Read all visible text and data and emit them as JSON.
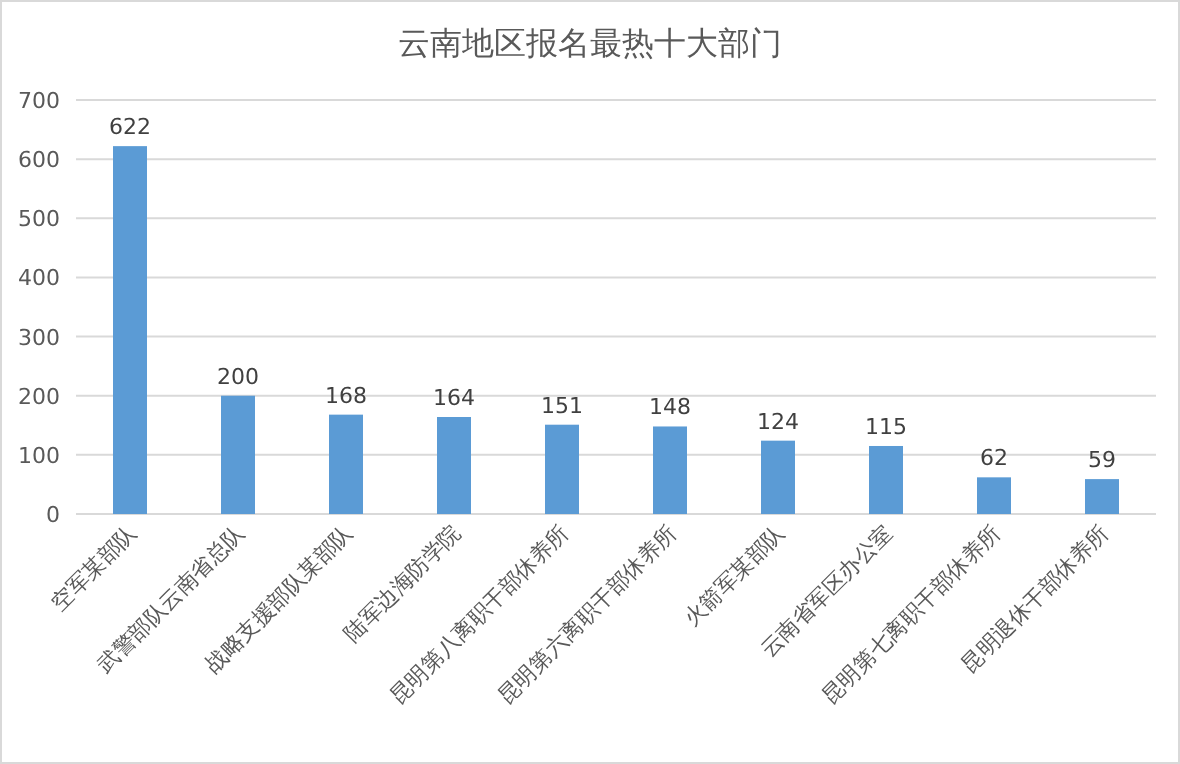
{
  "chart_data": {
    "type": "bar",
    "title": "云南地区报名最热十大部门",
    "categories": [
      "空军某部队",
      "武警部队云南省总队",
      "战略支援部队某部队",
      "陆军边海防学院",
      "昆明第八离职干部休养所",
      "昆明第六离职干部休养所",
      "火箭军某部队",
      "云南省军区办公室",
      "昆明第七离职干部休养所",
      "昆明退休干部休养所"
    ],
    "values": [
      622,
      200,
      168,
      164,
      151,
      148,
      124,
      115,
      62,
      59
    ],
    "color": "#5b9bd5",
    "ylim": [
      0,
      700
    ],
    "yticks": [
      0,
      100,
      200,
      300,
      400,
      500,
      600,
      700
    ],
    "grid": "y",
    "data_labels": true
  }
}
